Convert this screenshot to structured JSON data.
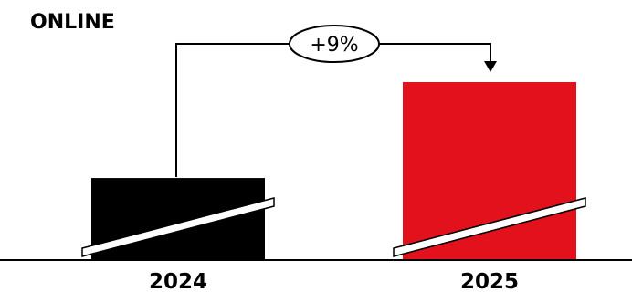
{
  "chart_data": {
    "type": "bar",
    "title": "ONLINE",
    "categories": [
      "2024",
      "2025"
    ],
    "values": [
      100,
      109
    ],
    "bar_colors": [
      "#000000",
      "#e2111c"
    ],
    "axis_break": true,
    "annotation": {
      "label": "+9%",
      "from": "2024",
      "to": "2025"
    }
  }
}
